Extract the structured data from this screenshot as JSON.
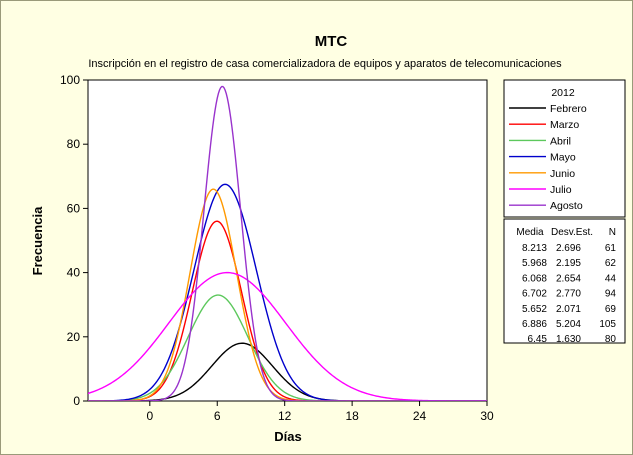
{
  "chart_data": {
    "type": "line",
    "title": "MTC",
    "subtitle": "Inscripción en el registro de casa comercializadora de equipos y aparatos de telecomunicaciones",
    "xlabel": "Días",
    "ylabel": "Frecuencia",
    "xlim": [
      -5.5,
      30
    ],
    "ylim": [
      0,
      100
    ],
    "xticks": [
      0,
      6,
      12,
      18,
      24,
      30
    ],
    "yticks": [
      0,
      20,
      40,
      60,
      80,
      100
    ],
    "legend": {
      "title": "2012",
      "position": "right",
      "stats_headers": [
        "Media",
        "Desv.Est.",
        "N"
      ]
    },
    "series": [
      {
        "name": "Febrero",
        "color": "#000000",
        "mean": "8.213",
        "sd": "2.696",
        "n": "61",
        "peak": 18.0
      },
      {
        "name": "Marzo",
        "color": "#ff0000",
        "mean": "5.968",
        "sd": "2.195",
        "n": "62",
        "peak": 56.0
      },
      {
        "name": "Abril",
        "color": "#5cc85c",
        "mean": "6.068",
        "sd": "2.654",
        "n": "44",
        "peak": 33.0
      },
      {
        "name": "Mayo",
        "color": "#0000cc",
        "mean": "6.702",
        "sd": "2.770",
        "n": "94",
        "peak": 67.5
      },
      {
        "name": "Junio",
        "color": "#ff9900",
        "mean": "5.652",
        "sd": "2.071",
        "n": "69",
        "peak": 66.0
      },
      {
        "name": "Julio",
        "color": "#ff00ff",
        "mean": "6.886",
        "sd": "5.204",
        "n": "105",
        "peak": 40.0
      },
      {
        "name": "Agosto",
        "color": "#9933cc",
        "mean": "6.45",
        "sd": "1.630",
        "n": "80",
        "peak": 98.0
      }
    ]
  }
}
